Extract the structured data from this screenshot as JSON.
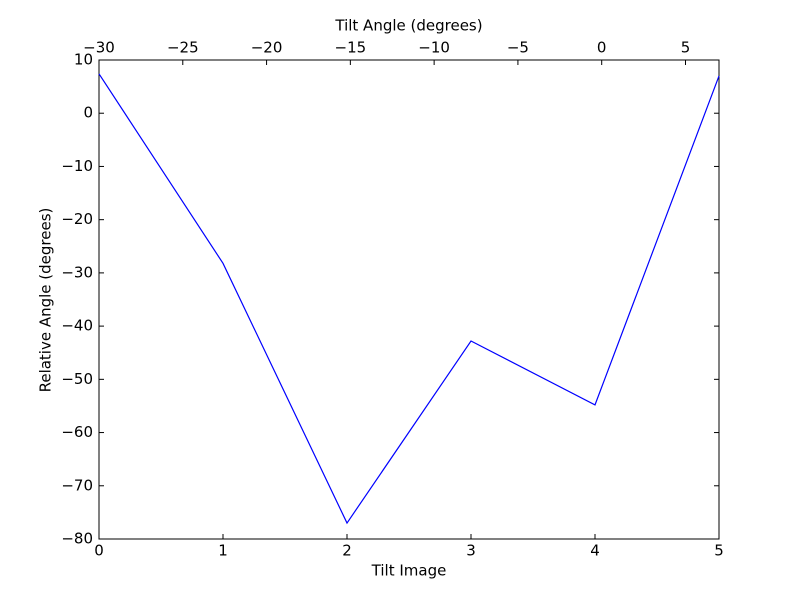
{
  "chart_data": {
    "type": "line",
    "xlabel": "Tilt Image",
    "ylabel": "Relative Angle (degrees)",
    "x2label": "Tilt Angle (degrees)",
    "x": [
      0,
      1,
      2,
      3,
      4,
      5
    ],
    "values": [
      7.4,
      -28.2,
      -77.0,
      -42.8,
      -54.8,
      7.0
    ],
    "color": "#0000ff",
    "xlim": [
      0,
      5
    ],
    "xticks": [
      0,
      1,
      2,
      3,
      4,
      5
    ],
    "ylim": [
      -80,
      10
    ],
    "yticks": [
      {
        "value": -80,
        "label": "−80"
      },
      {
        "value": -70,
        "label": "−70"
      },
      {
        "value": -60,
        "label": "−60"
      },
      {
        "value": -50,
        "label": "−50"
      },
      {
        "value": -40,
        "label": "−40"
      },
      {
        "value": -30,
        "label": "−30"
      },
      {
        "value": -20,
        "label": "−20"
      },
      {
        "value": -10,
        "label": "−10"
      },
      0,
      10
    ],
    "x2lim": [
      -30,
      7
    ],
    "x2ticks": [
      {
        "value": -30,
        "label": "−30"
      },
      {
        "value": -25,
        "label": "−25"
      },
      {
        "value": -20,
        "label": "−20"
      },
      {
        "value": -15,
        "label": "−15"
      },
      {
        "value": -10,
        "label": "−10"
      },
      {
        "value": -5,
        "label": "−5"
      },
      0,
      5
    ]
  }
}
